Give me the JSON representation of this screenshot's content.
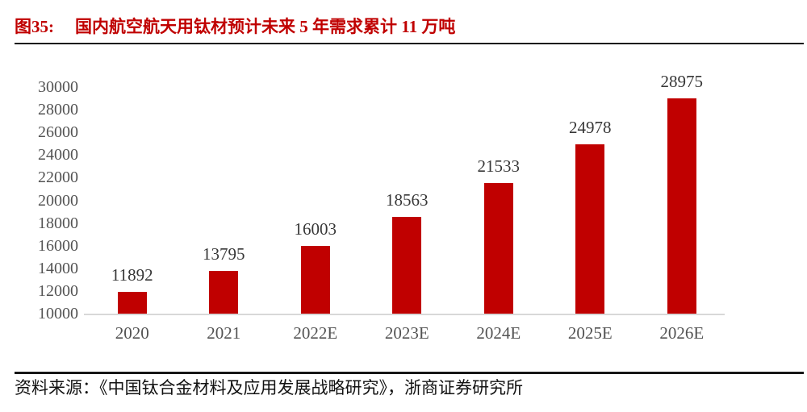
{
  "figure": {
    "number": "图35:",
    "title": "国内航空航天用钛材预计未来 5 年需求累计 11 万吨"
  },
  "chart_data": {
    "type": "bar",
    "title": "国内航空航天用钛材预计未来 5 年需求累计 11 万吨",
    "categories": [
      "2020",
      "2021",
      "2022E",
      "2023E",
      "2024E",
      "2025E",
      "2026E"
    ],
    "values": [
      11892,
      13795,
      16003,
      18563,
      21533,
      24978,
      28975
    ],
    "value_labels": [
      "11892",
      "13795",
      "16003",
      "18563",
      "21533",
      "24978",
      "28975"
    ],
    "xlabel": "",
    "ylabel": "",
    "ylim": [
      10000,
      30000
    ],
    "ytick_interval": 2000,
    "yticks": [
      10000,
      12000,
      14000,
      16000,
      18000,
      20000,
      22000,
      24000,
      26000,
      28000,
      30000
    ],
    "grid": false,
    "legend": "none",
    "data_labels_shown": true
  },
  "source_line": "资料来源：《中国钛合金材料及应用发展战略研究》，浙商证券研究所",
  "colors": {
    "title_red": "#c00000",
    "bar_red": "#c00000",
    "axis_text_gray": "#535353",
    "value_label_dark": "#373737",
    "rule_black": "#161616",
    "baseline_gray": "#d8d8d8",
    "source_text": "#121212",
    "background": "#ffffff"
  }
}
